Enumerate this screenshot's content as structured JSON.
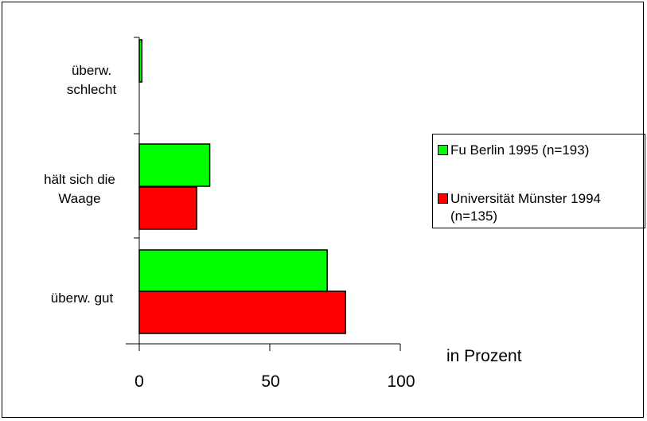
{
  "chart_data": {
    "type": "bar",
    "orientation": "horizontal",
    "categories": [
      "überw. schlecht",
      "hält sich die Waage",
      "überw. gut"
    ],
    "category_lines": [
      [
        "überw.",
        "schlecht"
      ],
      [
        "hält sich die",
        "Waage"
      ],
      [
        "überw. gut"
      ]
    ],
    "series": [
      {
        "name": "Fu Berlin 1995 (n=193)",
        "color": "#00ff00",
        "values": [
          1,
          27,
          72
        ]
      },
      {
        "name": "Universität Münster 1994 (n=135)",
        "color": "#ff0000",
        "values": [
          0,
          22,
          79
        ]
      }
    ],
    "xlim": [
      0,
      100
    ],
    "xticks": [
      "0",
      "50",
      "100"
    ],
    "xlabel": "in Prozent",
    "legend_position": "right",
    "grid": false
  }
}
